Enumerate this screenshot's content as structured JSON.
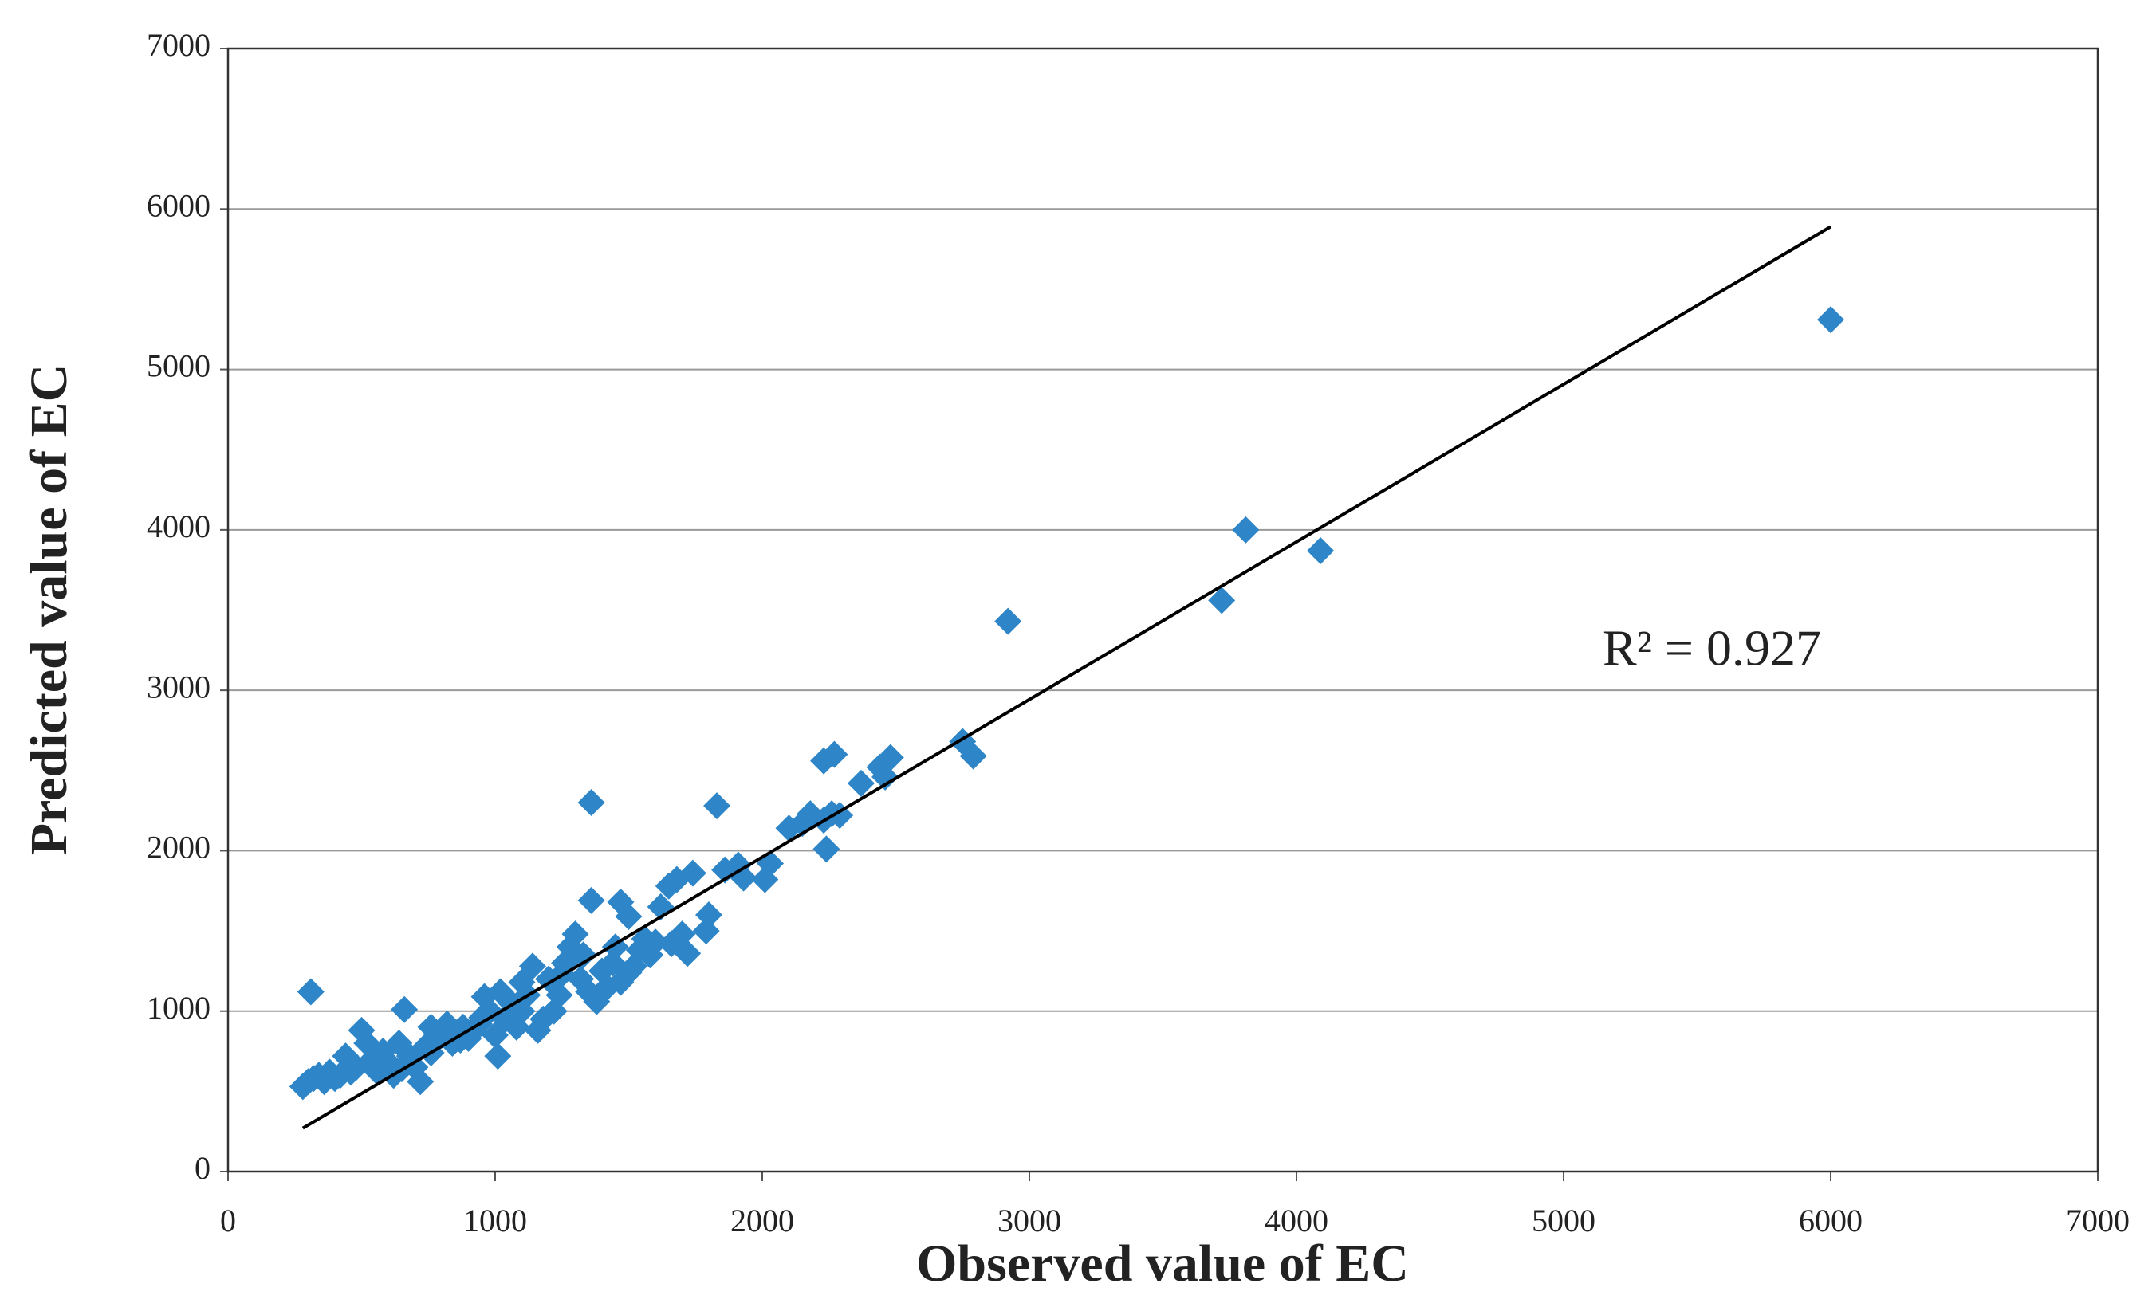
{
  "chart_data": {
    "type": "scatter",
    "x_label": "Observed value of EC",
    "y_label": "Predicted value of EC",
    "annotation": "R² = 0.927",
    "xlim": [
      0,
      7000
    ],
    "ylim": [
      0,
      7000
    ],
    "xticks": [
      0,
      1000,
      2000,
      3000,
      4000,
      5000,
      6000,
      7000
    ],
    "yticks": [
      0,
      1000,
      2000,
      3000,
      4000,
      5000,
      6000,
      7000
    ],
    "grid": true,
    "series": [
      {
        "color": "#2e86c8",
        "x": [
          6000,
          3810,
          4090,
          3720,
          2920,
          2750,
          2790,
          2480,
          2270,
          2230,
          2440,
          2460,
          2370,
          2260,
          2290,
          2230,
          2180,
          2150,
          2100,
          2240,
          2010,
          2030,
          1930,
          1910,
          1860,
          1830,
          1360,
          310,
          1740,
          1680,
          1650,
          1620,
          1800,
          1790,
          1720,
          1700,
          1660,
          1600,
          1560,
          1540,
          1500,
          1470,
          1360,
          1500,
          1470,
          1440,
          1420,
          1380,
          1350,
          1320,
          1300,
          1280,
          1260,
          1240,
          1220,
          1200,
          1180,
          1160,
          1140,
          1120,
          1100,
          1080,
          1060,
          1040,
          1020,
          1010,
          1000,
          980,
          960,
          940,
          920,
          900,
          880,
          860,
          840,
          820,
          800,
          780,
          760,
          740,
          720,
          700,
          680,
          660,
          640,
          620,
          600,
          580,
          560,
          540,
          520,
          500,
          480,
          460,
          440,
          420,
          400,
          380,
          360,
          340,
          320,
          300,
          280,
          1250,
          1330,
          1400,
          1450,
          1520,
          1580,
          1100,
          1050,
          950,
          870,
          760,
          650
        ],
        "values": [
          5310,
          4000,
          3870,
          3560,
          3430,
          2680,
          2590,
          2580,
          2600,
          2560,
          2520,
          2460,
          2420,
          2230,
          2220,
          2190,
          2230,
          2170,
          2140,
          2010,
          1820,
          1920,
          1830,
          1910,
          1880,
          2280,
          2300,
          1120,
          1860,
          1820,
          1780,
          1650,
          1600,
          1500,
          1360,
          1480,
          1420,
          1430,
          1450,
          1380,
          1590,
          1680,
          1690,
          1240,
          1180,
          1300,
          1150,
          1060,
          1120,
          1200,
          1480,
          1400,
          1300,
          1100,
          1000,
          1200,
          950,
          880,
          1280,
          1100,
          1000,
          900,
          1050,
          950,
          1120,
          720,
          850,
          1000,
          1090,
          920,
          880,
          830,
          900,
          870,
          800,
          920,
          850,
          820,
          900,
          780,
          560,
          650,
          720,
          1010,
          800,
          600,
          680,
          750,
          620,
          700,
          800,
          880,
          650,
          620,
          720,
          600,
          580,
          620,
          560,
          600,
          580,
          560,
          530,
          1230,
          1350,
          1250,
          1400,
          1280,
          1350,
          1180,
          980,
          960,
          820,
          740,
          640
        ]
      }
    ],
    "trendline": {
      "color": "#000000",
      "x": [
        280,
        6000
      ],
      "y": [
        270,
        5890
      ]
    }
  }
}
